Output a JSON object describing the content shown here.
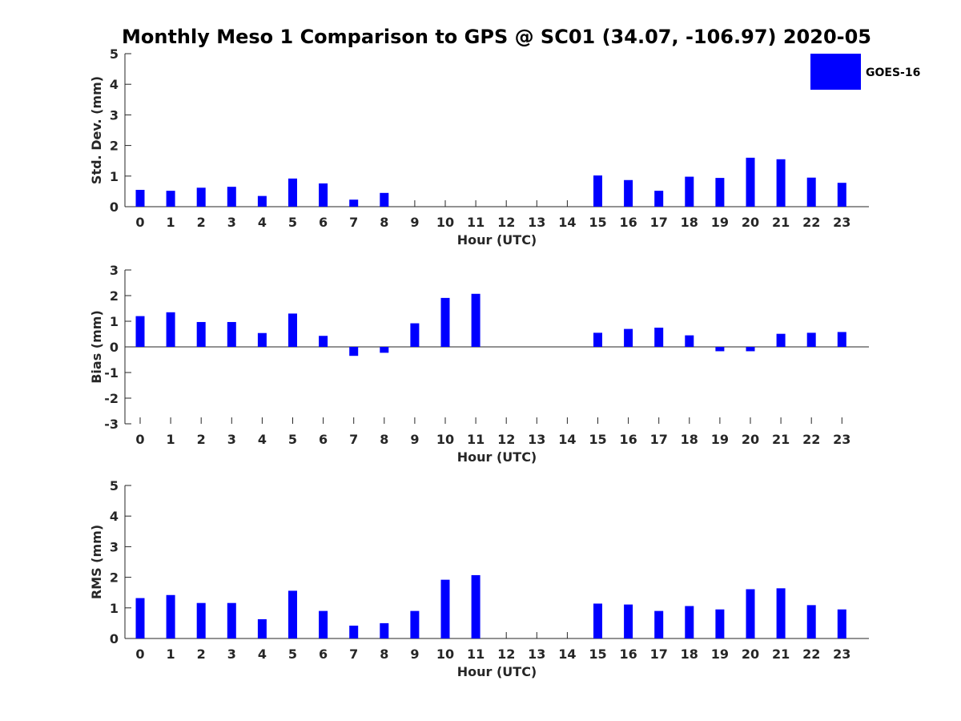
{
  "title": "Monthly Meso 1 Comparison to GPS @ SC01 (34.07, -106.97) 2020-05",
  "legend": {
    "label": "GOES-16",
    "color": "#0000ff",
    "placement": "top-right"
  },
  "axis_color": "#262626",
  "chart_data": [
    {
      "type": "bar",
      "xlabel": "Hour (UTC)",
      "ylabel": "Std. Dev. (mm)",
      "ylim": [
        0,
        5
      ],
      "yticks": [
        "0",
        "1",
        "2",
        "3",
        "4",
        "5"
      ],
      "categories": [
        "0",
        "1",
        "2",
        "3",
        "4",
        "5",
        "6",
        "7",
        "8",
        "9",
        "10",
        "11",
        "12",
        "13",
        "14",
        "15",
        "16",
        "17",
        "18",
        "19",
        "20",
        "21",
        "22",
        "23"
      ],
      "series": [
        {
          "name": "GOES-16",
          "values": [
            0.55,
            0.52,
            0.62,
            0.65,
            0.35,
            0.92,
            0.76,
            0.23,
            0.45,
            null,
            null,
            null,
            null,
            null,
            null,
            1.02,
            0.87,
            0.52,
            0.98,
            0.94,
            1.6,
            1.55,
            0.95,
            0.78
          ]
        }
      ]
    },
    {
      "type": "bar",
      "xlabel": "Hour (UTC)",
      "ylabel": "Bias (mm)",
      "ylim": [
        -3,
        3
      ],
      "yticks": [
        "-3",
        "-2",
        "-1",
        "0",
        "1",
        "2",
        "3"
      ],
      "categories": [
        "0",
        "1",
        "2",
        "3",
        "4",
        "5",
        "6",
        "7",
        "8",
        "9",
        "10",
        "11",
        "12",
        "13",
        "14",
        "15",
        "16",
        "17",
        "18",
        "19",
        "20",
        "21",
        "22",
        "23"
      ],
      "series": [
        {
          "name": "GOES-16",
          "values": [
            1.2,
            1.35,
            0.97,
            0.97,
            0.54,
            1.3,
            0.43,
            -0.35,
            -0.23,
            0.92,
            1.91,
            2.07,
            null,
            null,
            null,
            0.55,
            0.7,
            0.75,
            0.45,
            -0.17,
            -0.17,
            0.51,
            0.55,
            0.58
          ]
        }
      ]
    },
    {
      "type": "bar",
      "xlabel": "Hour (UTC)",
      "ylabel": "RMS (mm)",
      "ylim": [
        0,
        5
      ],
      "yticks": [
        "0",
        "1",
        "2",
        "3",
        "4",
        "5"
      ],
      "categories": [
        "0",
        "1",
        "2",
        "3",
        "4",
        "5",
        "6",
        "7",
        "8",
        "9",
        "10",
        "11",
        "12",
        "13",
        "14",
        "15",
        "16",
        "17",
        "18",
        "19",
        "20",
        "21",
        "22",
        "23"
      ],
      "series": [
        {
          "name": "GOES-16",
          "values": [
            1.32,
            1.42,
            1.16,
            1.16,
            0.63,
            1.56,
            0.9,
            0.42,
            0.5,
            0.9,
            1.92,
            2.07,
            null,
            null,
            null,
            1.14,
            1.11,
            0.9,
            1.06,
            0.95,
            1.61,
            1.64,
            1.09,
            0.95
          ]
        }
      ]
    }
  ]
}
